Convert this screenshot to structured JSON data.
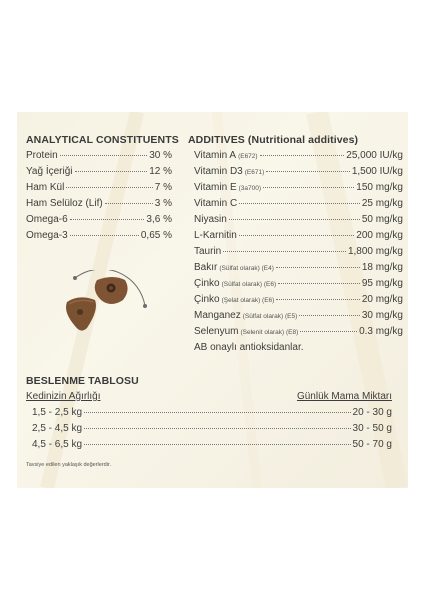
{
  "analytical": {
    "heading": "ANALYTICAL CONSTITUENTS",
    "rows": [
      {
        "name": "Protein",
        "value": "30 %"
      },
      {
        "name": "Yağ İçeriği",
        "value": "12 %"
      },
      {
        "name": "Ham Kül",
        "value": "7 %"
      },
      {
        "name": "Ham Selüloz (Lif)",
        "value": "3 %"
      },
      {
        "name": "Omega-6",
        "value": "3,6 %"
      },
      {
        "name": "Omega-3",
        "value": "0,65 %"
      }
    ]
  },
  "additives": {
    "heading": "ADDITIVES (Nutritional additives)",
    "rows": [
      {
        "name": "Vitamin A",
        "note": "(E672)",
        "value": "25,000 IU/kg"
      },
      {
        "name": "Vitamin D3",
        "note": "(E671)",
        "value": "1,500 IU/kg"
      },
      {
        "name": "Vitamin E",
        "note": "(3a700)",
        "value": "150 mg/kg"
      },
      {
        "name": "Vitamin C",
        "note": "",
        "value": "25 mg/kg"
      },
      {
        "name": "Niyasin",
        "note": "",
        "value": "50 mg/kg"
      },
      {
        "name": "L-Karnitin",
        "note": "",
        "value": "200 mg/kg"
      },
      {
        "name": "Taurin",
        "note": "",
        "value": "1,800 mg/kg"
      },
      {
        "name": "Bakır",
        "note": "(Sülfat olarak) (E4)",
        "value": "18 mg/kg"
      },
      {
        "name": "Çinko",
        "note": "(Sülfat olarak) (E6)",
        "value": "95 mg/kg"
      },
      {
        "name": "Çinko",
        "note": "(Şelat olarak) (E6)",
        "value": "20 mg/kg"
      },
      {
        "name": "Manganez",
        "note": "(Sülfat olarak) (E5)",
        "value": "30 mg/kg"
      },
      {
        "name": "Selenyum",
        "note": "(Selenit olarak) (E8)",
        "value": "0.3 mg/kg"
      }
    ],
    "antioxidant_note": "AB onaylı antioksidanlar."
  },
  "feeding": {
    "heading": "BESLENME TABLOSU",
    "col_weight": "Kedinizin Ağırlığı",
    "col_amount": "Günlük Mama Miktarı",
    "rows": [
      {
        "weight": "1,5 - 2,5 kg",
        "amount": "20 - 30 g"
      },
      {
        "weight": "2,5 - 4,5 kg",
        "amount": "30 - 50 g"
      },
      {
        "weight": "4,5 - 6,5 kg",
        "amount": "50 - 70 g"
      }
    ],
    "footnote": "Tavsiye edilen yaklaşık değerlerdir."
  },
  "colors": {
    "panel_background": "#f6f2e3",
    "text": "#3a3a3a",
    "kibble": "#7a5232"
  },
  "image": {
    "icon": "kibble-illustration-icon"
  }
}
